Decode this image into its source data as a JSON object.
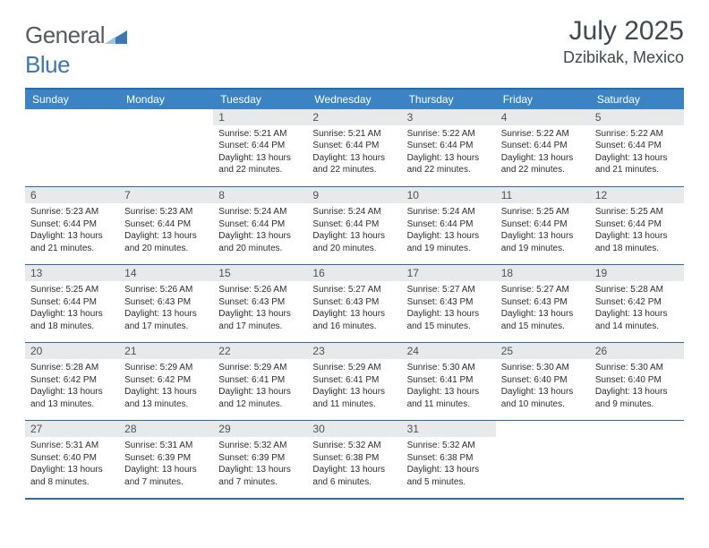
{
  "logo": {
    "word1": "General",
    "word2": "Blue"
  },
  "title": {
    "month": "July 2025",
    "location": "Dzibikak, Mexico"
  },
  "colors": {
    "header_bg": "#3b83c2",
    "header_text": "#ffffff",
    "border": "#2b6aa8",
    "daynum_bg": "#e8e9ea",
    "text": "#2d2d2d",
    "title_text": "#414a51",
    "logo_gray": "#555b60",
    "logo_blue": "#3d77b6",
    "page_bg": "#ffffff"
  },
  "weekdays": [
    "Sunday",
    "Monday",
    "Tuesday",
    "Wednesday",
    "Thursday",
    "Friday",
    "Saturday"
  ],
  "weeks": [
    [
      {
        "empty": true
      },
      {
        "empty": true
      },
      {
        "n": "1",
        "sr": "Sunrise: 5:21 AM",
        "ss": "Sunset: 6:44 PM",
        "dl": "Daylight: 13 hours and 22 minutes."
      },
      {
        "n": "2",
        "sr": "Sunrise: 5:21 AM",
        "ss": "Sunset: 6:44 PM",
        "dl": "Daylight: 13 hours and 22 minutes."
      },
      {
        "n": "3",
        "sr": "Sunrise: 5:22 AM",
        "ss": "Sunset: 6:44 PM",
        "dl": "Daylight: 13 hours and 22 minutes."
      },
      {
        "n": "4",
        "sr": "Sunrise: 5:22 AM",
        "ss": "Sunset: 6:44 PM",
        "dl": "Daylight: 13 hours and 22 minutes."
      },
      {
        "n": "5",
        "sr": "Sunrise: 5:22 AM",
        "ss": "Sunset: 6:44 PM",
        "dl": "Daylight: 13 hours and 21 minutes."
      }
    ],
    [
      {
        "n": "6",
        "sr": "Sunrise: 5:23 AM",
        "ss": "Sunset: 6:44 PM",
        "dl": "Daylight: 13 hours and 21 minutes."
      },
      {
        "n": "7",
        "sr": "Sunrise: 5:23 AM",
        "ss": "Sunset: 6:44 PM",
        "dl": "Daylight: 13 hours and 20 minutes."
      },
      {
        "n": "8",
        "sr": "Sunrise: 5:24 AM",
        "ss": "Sunset: 6:44 PM",
        "dl": "Daylight: 13 hours and 20 minutes."
      },
      {
        "n": "9",
        "sr": "Sunrise: 5:24 AM",
        "ss": "Sunset: 6:44 PM",
        "dl": "Daylight: 13 hours and 20 minutes."
      },
      {
        "n": "10",
        "sr": "Sunrise: 5:24 AM",
        "ss": "Sunset: 6:44 PM",
        "dl": "Daylight: 13 hours and 19 minutes."
      },
      {
        "n": "11",
        "sr": "Sunrise: 5:25 AM",
        "ss": "Sunset: 6:44 PM",
        "dl": "Daylight: 13 hours and 19 minutes."
      },
      {
        "n": "12",
        "sr": "Sunrise: 5:25 AM",
        "ss": "Sunset: 6:44 PM",
        "dl": "Daylight: 13 hours and 18 minutes."
      }
    ],
    [
      {
        "n": "13",
        "sr": "Sunrise: 5:25 AM",
        "ss": "Sunset: 6:44 PM",
        "dl": "Daylight: 13 hours and 18 minutes."
      },
      {
        "n": "14",
        "sr": "Sunrise: 5:26 AM",
        "ss": "Sunset: 6:43 PM",
        "dl": "Daylight: 13 hours and 17 minutes."
      },
      {
        "n": "15",
        "sr": "Sunrise: 5:26 AM",
        "ss": "Sunset: 6:43 PM",
        "dl": "Daylight: 13 hours and 17 minutes."
      },
      {
        "n": "16",
        "sr": "Sunrise: 5:27 AM",
        "ss": "Sunset: 6:43 PM",
        "dl": "Daylight: 13 hours and 16 minutes."
      },
      {
        "n": "17",
        "sr": "Sunrise: 5:27 AM",
        "ss": "Sunset: 6:43 PM",
        "dl": "Daylight: 13 hours and 15 minutes."
      },
      {
        "n": "18",
        "sr": "Sunrise: 5:27 AM",
        "ss": "Sunset: 6:43 PM",
        "dl": "Daylight: 13 hours and 15 minutes."
      },
      {
        "n": "19",
        "sr": "Sunrise: 5:28 AM",
        "ss": "Sunset: 6:42 PM",
        "dl": "Daylight: 13 hours and 14 minutes."
      }
    ],
    [
      {
        "n": "20",
        "sr": "Sunrise: 5:28 AM",
        "ss": "Sunset: 6:42 PM",
        "dl": "Daylight: 13 hours and 13 minutes."
      },
      {
        "n": "21",
        "sr": "Sunrise: 5:29 AM",
        "ss": "Sunset: 6:42 PM",
        "dl": "Daylight: 13 hours and 13 minutes."
      },
      {
        "n": "22",
        "sr": "Sunrise: 5:29 AM",
        "ss": "Sunset: 6:41 PM",
        "dl": "Daylight: 13 hours and 12 minutes."
      },
      {
        "n": "23",
        "sr": "Sunrise: 5:29 AM",
        "ss": "Sunset: 6:41 PM",
        "dl": "Daylight: 13 hours and 11 minutes."
      },
      {
        "n": "24",
        "sr": "Sunrise: 5:30 AM",
        "ss": "Sunset: 6:41 PM",
        "dl": "Daylight: 13 hours and 11 minutes."
      },
      {
        "n": "25",
        "sr": "Sunrise: 5:30 AM",
        "ss": "Sunset: 6:40 PM",
        "dl": "Daylight: 13 hours and 10 minutes."
      },
      {
        "n": "26",
        "sr": "Sunrise: 5:30 AM",
        "ss": "Sunset: 6:40 PM",
        "dl": "Daylight: 13 hours and 9 minutes."
      }
    ],
    [
      {
        "n": "27",
        "sr": "Sunrise: 5:31 AM",
        "ss": "Sunset: 6:40 PM",
        "dl": "Daylight: 13 hours and 8 minutes."
      },
      {
        "n": "28",
        "sr": "Sunrise: 5:31 AM",
        "ss": "Sunset: 6:39 PM",
        "dl": "Daylight: 13 hours and 7 minutes."
      },
      {
        "n": "29",
        "sr": "Sunrise: 5:32 AM",
        "ss": "Sunset: 6:39 PM",
        "dl": "Daylight: 13 hours and 7 minutes."
      },
      {
        "n": "30",
        "sr": "Sunrise: 5:32 AM",
        "ss": "Sunset: 6:38 PM",
        "dl": "Daylight: 13 hours and 6 minutes."
      },
      {
        "n": "31",
        "sr": "Sunrise: 5:32 AM",
        "ss": "Sunset: 6:38 PM",
        "dl": "Daylight: 13 hours and 5 minutes."
      },
      {
        "empty": true
      },
      {
        "empty": true
      }
    ]
  ]
}
